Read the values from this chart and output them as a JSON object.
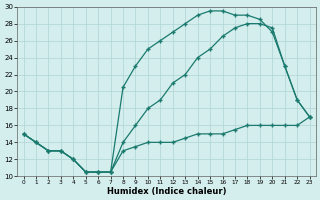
{
  "xlabel": "Humidex (Indice chaleur)",
  "bg_color": "#d4eeee",
  "line_color": "#1a7a6e",
  "grid_color": "#b0d4d4",
  "xlim_min": -0.5,
  "xlim_max": 23.5,
  "ylim_min": 10,
  "ylim_max": 30,
  "xticks": [
    0,
    1,
    2,
    3,
    4,
    5,
    6,
    7,
    8,
    9,
    10,
    11,
    12,
    13,
    14,
    15,
    16,
    17,
    18,
    19,
    20,
    21,
    22,
    23
  ],
  "yticks": [
    10,
    12,
    14,
    16,
    18,
    20,
    22,
    24,
    26,
    28,
    30
  ],
  "series1_x": [
    0,
    1,
    2,
    3,
    4,
    5,
    6,
    7,
    8,
    9,
    10,
    11,
    12,
    13,
    14,
    15,
    16,
    17,
    18,
    19,
    20,
    21,
    22,
    23
  ],
  "series1_y": [
    15,
    14,
    13,
    13,
    12,
    10.5,
    10.5,
    10.5,
    13,
    13.5,
    14,
    14,
    14,
    14.5,
    15,
    15,
    15,
    15.5,
    16,
    16,
    16,
    16,
    16,
    17
  ],
  "series2_x": [
    0,
    1,
    2,
    3,
    4,
    5,
    6,
    7,
    8,
    9,
    10,
    11,
    12,
    13,
    14,
    15,
    16,
    17,
    18,
    19,
    20,
    21,
    22,
    23
  ],
  "series2_y": [
    15,
    14,
    13,
    13,
    12,
    10.5,
    10.5,
    10.5,
    20.5,
    23,
    25,
    26,
    27,
    28,
    29,
    29.5,
    29.5,
    29,
    29,
    28.5,
    27,
    23,
    19,
    17
  ],
  "series3_x": [
    0,
    1,
    2,
    3,
    4,
    5,
    6,
    7,
    8,
    9,
    10,
    11,
    12,
    13,
    14,
    15,
    16,
    17,
    18,
    19,
    20,
    21,
    22,
    23
  ],
  "series3_y": [
    15,
    14,
    13,
    13,
    12,
    10.5,
    10.5,
    10.5,
    14,
    16,
    18,
    19,
    21,
    22,
    24,
    25,
    26.5,
    27.5,
    28,
    28,
    27.5,
    23,
    19,
    17
  ]
}
